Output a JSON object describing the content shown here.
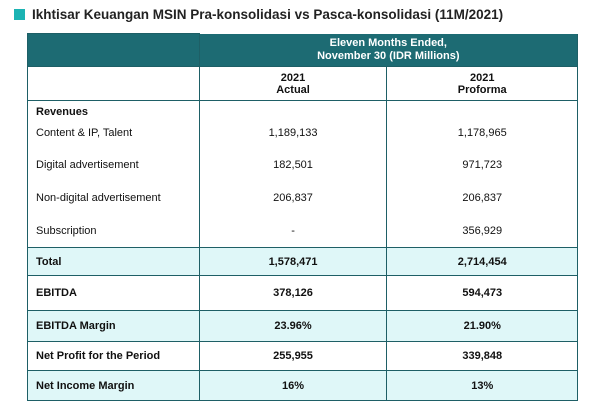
{
  "title": "Ikhtisar Keuangan MSIN Pra-konsolidasi vs Pasca-konsolidasi (11M/2021)",
  "table": {
    "period_lines": [
      "Eleven Months Ended,",
      "November 30 (IDR Millions)"
    ],
    "columns": [
      {
        "year": "2021",
        "label": "Actual"
      },
      {
        "year": "2021",
        "label": "Proforma"
      }
    ],
    "rows": [
      {
        "label": "Revenues",
        "bold": true,
        "highlight": false
      },
      {
        "label": "Content & IP, Talent",
        "actual": "1,189,133",
        "proforma": "1,178,965",
        "bold": false,
        "highlight": false
      },
      {
        "label": "Digital advertisement",
        "actual": "182,501",
        "proforma": "971,723",
        "bold": false,
        "highlight": false
      },
      {
        "label": "Non-digital advertisement",
        "actual": "206,837",
        "proforma": "206,837",
        "bold": false,
        "highlight": false
      },
      {
        "label": "Subscription",
        "actual": "-",
        "proforma": "356,929",
        "bold": false,
        "highlight": false
      },
      {
        "label": "Total",
        "actual": "1,578,471",
        "proforma": "2,714,454",
        "bold": true,
        "highlight": true
      },
      {
        "label": "EBITDA",
        "actual": "378,126",
        "proforma": "594,473",
        "bold": true,
        "highlight": false
      },
      {
        "label": "EBITDA Margin",
        "actual": "23.96%",
        "proforma": "21.90%",
        "bold": true,
        "highlight": true
      },
      {
        "label": "Net Profit for the Period",
        "actual": "255,955",
        "proforma": "339,848",
        "bold": true,
        "highlight": false
      },
      {
        "label": "Net Income Margin",
        "actual": "16%",
        "proforma": "13%",
        "bold": true,
        "highlight": true
      }
    ]
  }
}
